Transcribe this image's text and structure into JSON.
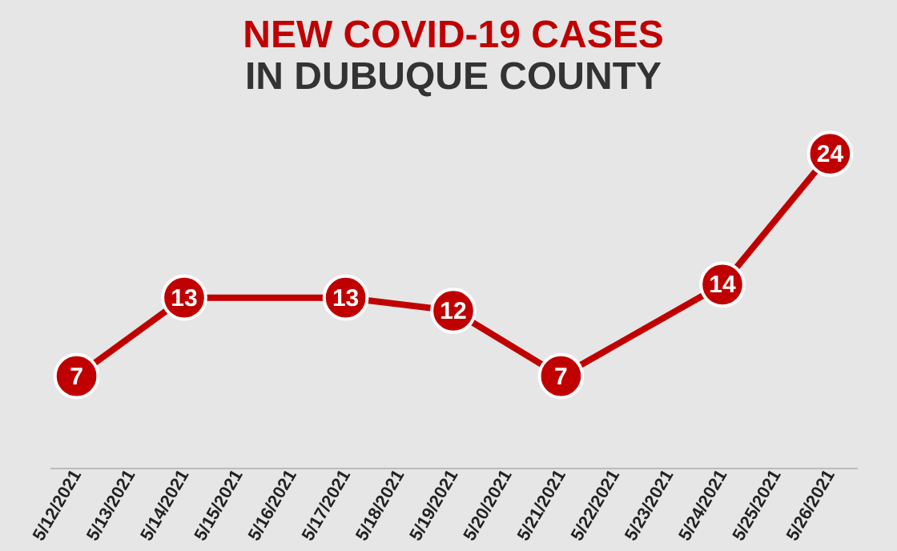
{
  "chart_data": {
    "type": "line",
    "title": "NEW COVID-19 CASES",
    "subtitle": "IN DUBUQUE COUNTY",
    "categories": [
      "5/12/2021",
      "5/13/2021",
      "5/14/2021",
      "5/15/2021",
      "5/16/2021",
      "5/17/2021",
      "5/18/2021",
      "5/19/2021",
      "5/20/2021",
      "5/21/2021",
      "5/22/2021",
      "5/23/2021",
      "5/24/2021",
      "5/25/2021",
      "5/26/2021"
    ],
    "series": [
      {
        "color": "#c00000",
        "values": [
          7,
          null,
          13,
          null,
          null,
          13,
          null,
          12,
          null,
          7,
          null,
          null,
          14,
          null,
          24
        ]
      }
    ],
    "data_labels": true,
    "marker": "circle",
    "grid": false
  }
}
